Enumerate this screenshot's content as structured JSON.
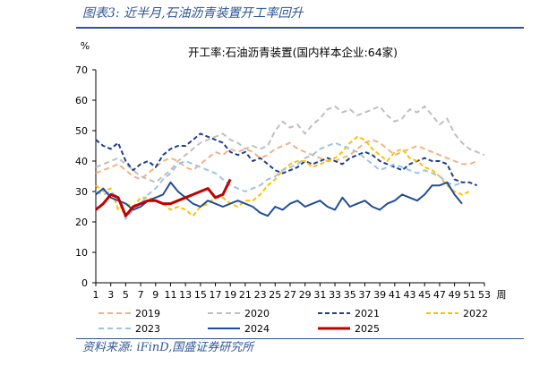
{
  "figure": {
    "title": "图表3:  近半月,石油沥青装置开工率回升",
    "source": "资料来源:  iFinD,国盛证券研究所"
  },
  "chart_data": {
    "type": "line",
    "title": "开工率:石油沥青装置(国内样本企业:64家)",
    "ylabel": "%",
    "xlabel": "周",
    "ylim": [
      0,
      70
    ],
    "yticks": [
      0,
      10,
      20,
      30,
      40,
      50,
      60,
      70
    ],
    "xlim": [
      1,
      53
    ],
    "xticks": [
      "1",
      "3",
      "5",
      "7",
      "9",
      "11",
      "13",
      "15",
      "17",
      "19",
      "21",
      "23",
      "25",
      "27",
      "29",
      "31",
      "33",
      "35",
      "37",
      "39",
      "41",
      "43",
      "45",
      "47",
      "49",
      "51",
      "53"
    ],
    "grid": false,
    "legend": "bottom",
    "series": [
      {
        "name": "2019",
        "color": "#f4b183",
        "dash": "6,4",
        "width": 2,
        "values": [
          36,
          37,
          38,
          39,
          37,
          35,
          34,
          36,
          38,
          40,
          41,
          40,
          38,
          37,
          39,
          41,
          43,
          42,
          44,
          43,
          44,
          43,
          41,
          42,
          44,
          45,
          46,
          44,
          43,
          42,
          41,
          40,
          40,
          41,
          42,
          44,
          46,
          47,
          46,
          44,
          42,
          43,
          44,
          45,
          44,
          43,
          42,
          41,
          40,
          39,
          39,
          40
        ]
      },
      {
        "name": "2020",
        "color": "#bfbfbf",
        "dash": "6,4",
        "width": 2,
        "values": [
          38,
          39,
          40,
          41,
          39,
          37,
          35,
          34,
          33,
          35,
          37,
          40,
          42,
          44,
          46,
          47,
          48,
          49,
          47,
          46,
          44,
          45,
          44,
          45,
          50,
          53,
          51,
          52,
          49,
          52,
          54,
          57,
          58,
          56,
          57,
          55,
          56,
          57,
          58,
          55,
          53,
          54,
          57,
          56,
          58,
          55,
          52,
          54,
          49,
          46,
          44,
          43,
          42
        ]
      },
      {
        "name": "2021",
        "color": "#1f3e8c",
        "dash": "5,3",
        "width": 2,
        "values": [
          47,
          45,
          44,
          46,
          40,
          37,
          39,
          40,
          38,
          42,
          44,
          45,
          45,
          47,
          49,
          48,
          47,
          46,
          43,
          42,
          43,
          40,
          41,
          39,
          37,
          36,
          37,
          38,
          40,
          39,
          40,
          41,
          40,
          39,
          41,
          42,
          43,
          42,
          40,
          39,
          38,
          37,
          39,
          40,
          41,
          40,
          40,
          39,
          34,
          33,
          33,
          32
        ]
      },
      {
        "name": "2022",
        "color": "#ffc000",
        "dash": "5,3",
        "width": 2,
        "values": [
          32,
          30,
          31,
          24,
          26,
          25,
          28,
          28,
          27,
          26,
          24,
          25,
          24,
          22,
          25,
          26,
          28,
          28,
          26,
          25,
          27,
          27,
          29,
          32,
          34,
          37,
          39,
          40,
          40,
          38,
          39,
          40,
          41,
          43,
          46,
          48,
          47,
          44,
          42,
          40,
          43,
          44,
          41,
          40,
          38,
          37,
          35,
          32,
          30,
          29,
          30
        ]
      },
      {
        "name": "2023",
        "color": "#9dc3e6",
        "dash": "6,4",
        "width": 2,
        "values": [
          30,
          29,
          30,
          28,
          21,
          24,
          26,
          29,
          31,
          34,
          36,
          39,
          40,
          39,
          38,
          37,
          36,
          34,
          32,
          31,
          30,
          31,
          32,
          34,
          35,
          37,
          38,
          39,
          41,
          42,
          44,
          45,
          46,
          45,
          44,
          43,
          41,
          39,
          37,
          38,
          39,
          38,
          37,
          36,
          37,
          36,
          35,
          33,
          32,
          33
        ]
      },
      {
        "name": "2024",
        "color": "#1f4e99",
        "dash": "",
        "width": 2,
        "values": [
          29,
          31,
          28,
          27,
          26,
          24,
          25,
          27,
          28,
          29,
          33,
          30,
          28,
          26,
          25,
          27,
          26,
          25,
          26,
          27,
          26,
          25,
          23,
          22,
          25,
          24,
          26,
          27,
          25,
          26,
          27,
          25,
          24,
          28,
          25,
          26,
          27,
          25,
          24,
          26,
          27,
          29,
          28,
          27,
          29,
          32,
          32,
          33,
          29,
          26
        ]
      },
      {
        "name": "2025",
        "color": "#c00000",
        "dash": "",
        "width": 3,
        "values": [
          24,
          26,
          29,
          28,
          22,
          25,
          26,
          27,
          27,
          26,
          26,
          27,
          28,
          29,
          30,
          31,
          28,
          29,
          34
        ]
      }
    ]
  }
}
